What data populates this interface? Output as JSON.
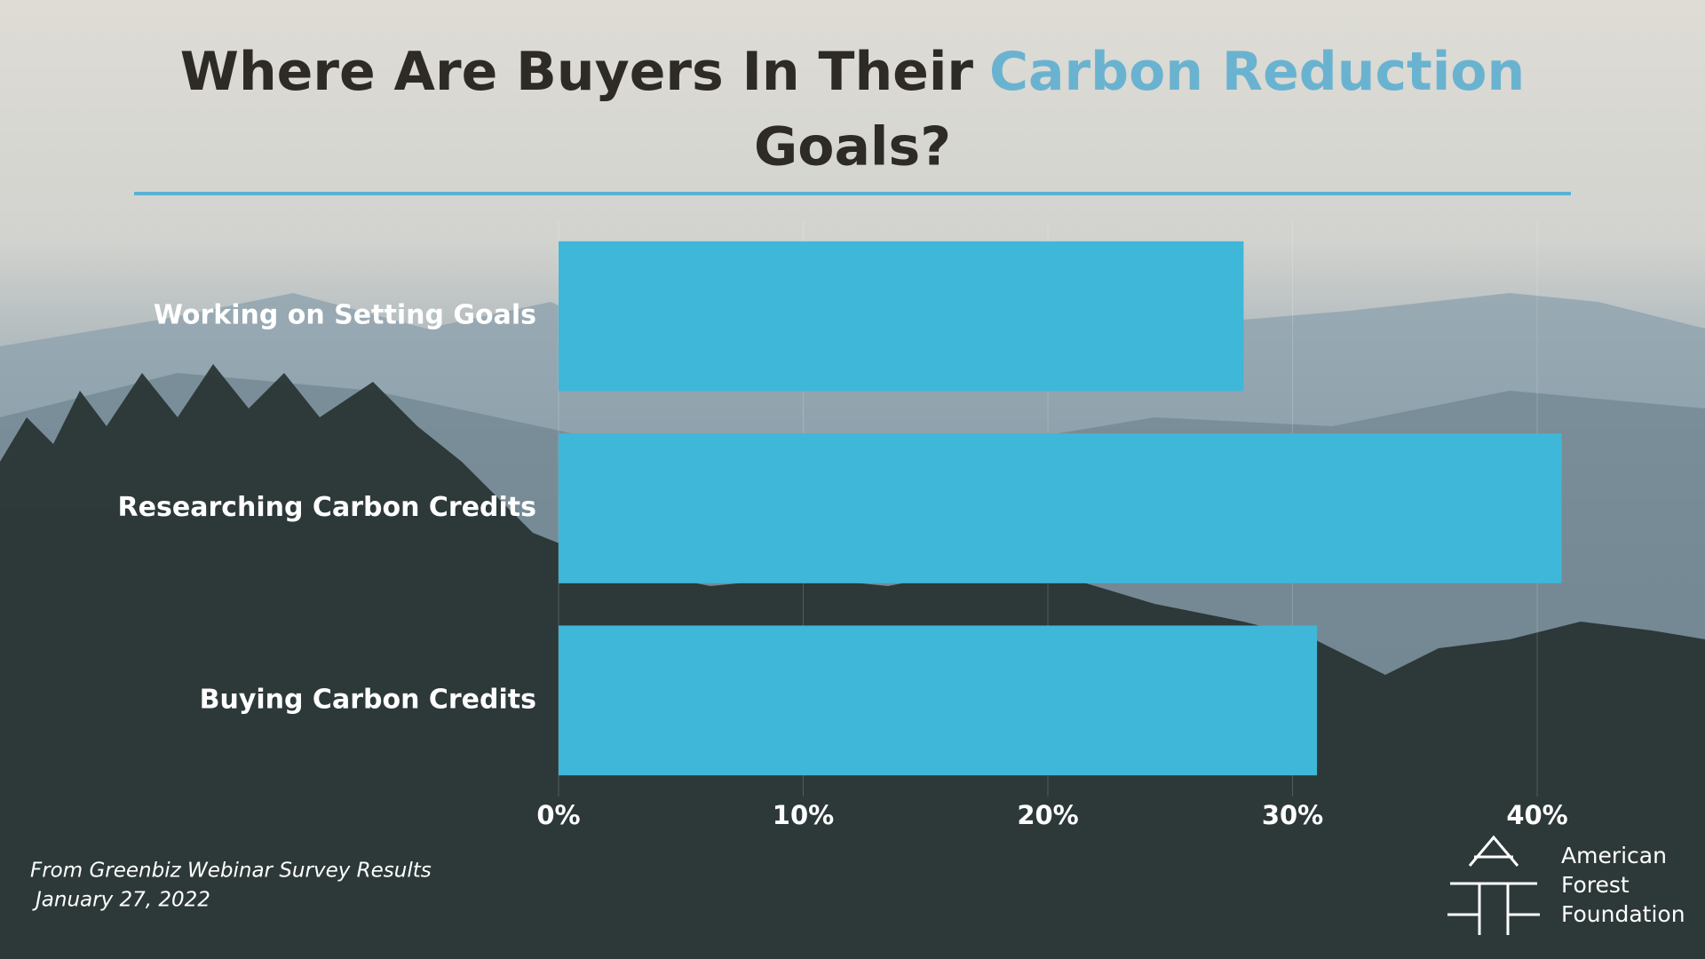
{
  "chart_data": {
    "type": "hbar",
    "title_parts": [
      "Where Are Buyers In Their",
      "Carbon Reduction",
      "Goals?"
    ],
    "categories": [
      "Working on Setting Goals",
      "Researching Carbon Credits",
      "Buying Carbon Credits"
    ],
    "values": [
      28,
      41,
      31
    ],
    "color": "#3fb7d8",
    "xlim": [
      0,
      41
    ],
    "xticks": [
      {
        "value": 0,
        "label": "0%"
      },
      {
        "value": 10,
        "label": "10%"
      },
      {
        "value": 20,
        "label": "20%"
      },
      {
        "value": 30,
        "label": "30%"
      },
      {
        "value": 40,
        "label": "40%"
      }
    ],
    "grid": true,
    "source": [
      "From Greenbiz Webinar Survey Results",
      "January 27, 2022"
    ],
    "logo": [
      "American",
      "Forest",
      "Foundation"
    ]
  }
}
